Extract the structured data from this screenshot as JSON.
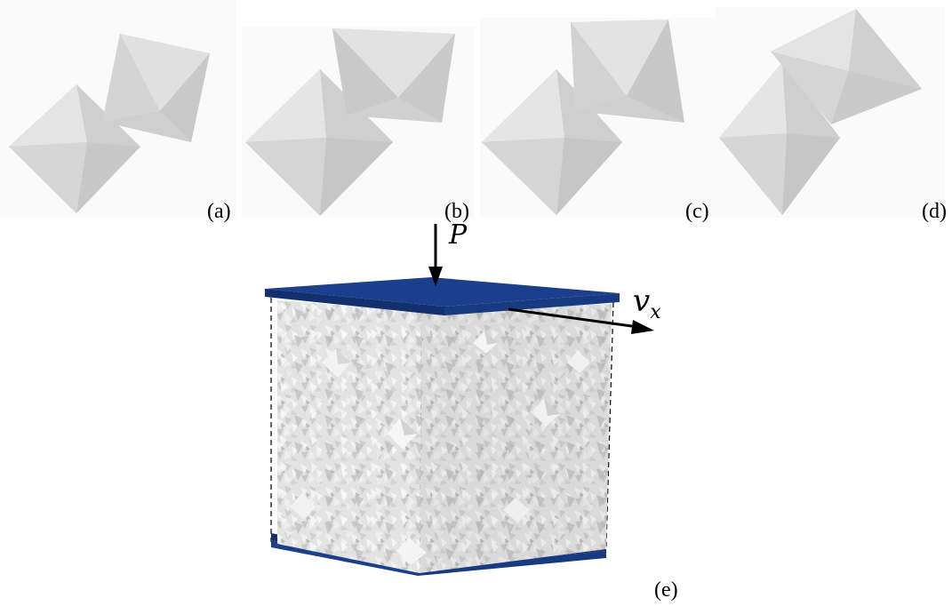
{
  "panels": [
    {
      "label": "(a)",
      "description_id": "octahedra-pair-a"
    },
    {
      "label": "(b)",
      "description_id": "octahedra-pair-b"
    },
    {
      "label": "(c)",
      "description_id": "octahedra-pair-c"
    },
    {
      "label": "(d)",
      "description_id": "octahedra-pair-d"
    }
  ],
  "figure_e": {
    "label": "(e)",
    "force_label": "P",
    "velocity_label": "v",
    "velocity_subscript": "x",
    "colors": {
      "plate": "#1b3f8c",
      "plate_dark": "#12306e",
      "particles": "#e6e6e6",
      "particle_shadow": "#b9b9b9",
      "octahedron": "#dcdcdc",
      "octahedron_shade": "#c4c4c4"
    }
  }
}
